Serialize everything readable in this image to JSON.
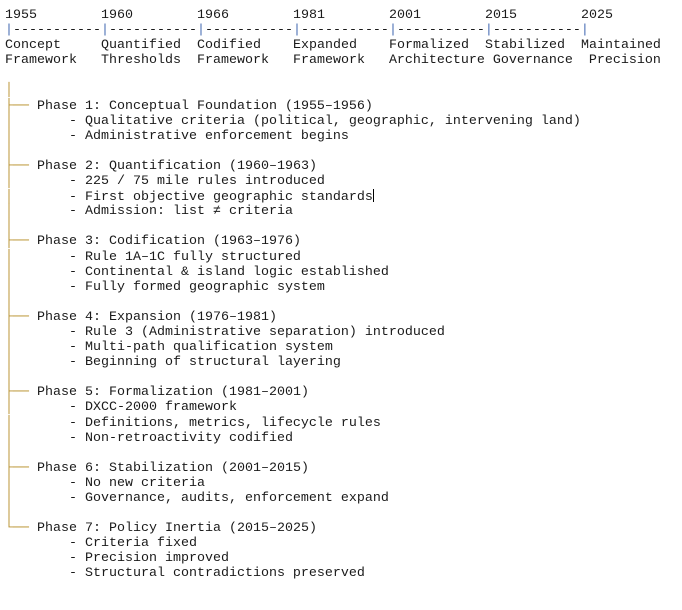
{
  "timeline": {
    "years": [
      "1955",
      "1960",
      "1966",
      "1981",
      "2001",
      "2015",
      "2025"
    ],
    "labels_top": [
      "Concept",
      "Quantified",
      "Codified",
      "Expanded",
      "Formalized",
      "Stabilized",
      "Maintained"
    ],
    "labels_bottom": [
      "Framework",
      "Thresholds",
      "Framework",
      "Framework",
      "Architecture",
      "Governance",
      "Precision"
    ]
  },
  "phases": [
    {
      "title": "Phase 1: Conceptual Foundation (1955–1956)",
      "items": [
        "Qualitative criteria (political, geographic, intervening land)",
        "Administrative enforcement begins"
      ]
    },
    {
      "title": "Phase 2: Quantification (1960–1963)",
      "items": [
        "225 / 75 mile rules introduced",
        "First objective geographic standards",
        "Admission: list ≠ criteria"
      ]
    },
    {
      "title": "Phase 3: Codification (1963–1976)",
      "items": [
        "Rule 1A–1C fully structured",
        "Continental & island logic established",
        "Fully formed geographic system"
      ]
    },
    {
      "title": "Phase 4: Expansion (1976–1981)",
      "items": [
        "Rule 3 (Administrative separation) introduced",
        "Multi-path qualification system",
        "Beginning of structural layering"
      ]
    },
    {
      "title": "Phase 5: Formalization (1981–2001)",
      "items": [
        "DXCC-2000 framework",
        "Definitions, metrics, lifecycle rules",
        "Non-retroactivity codified"
      ]
    },
    {
      "title": "Phase 6: Stabilization (2001–2015)",
      "items": [
        "No new criteria",
        "Governance, audits, enforcement expand"
      ]
    },
    {
      "title": "Phase 7: Policy Inertia (2015–2025)",
      "items": [
        "Criteria fixed",
        "Precision improved",
        "Structural contradictions preserved"
      ]
    }
  ]
}
